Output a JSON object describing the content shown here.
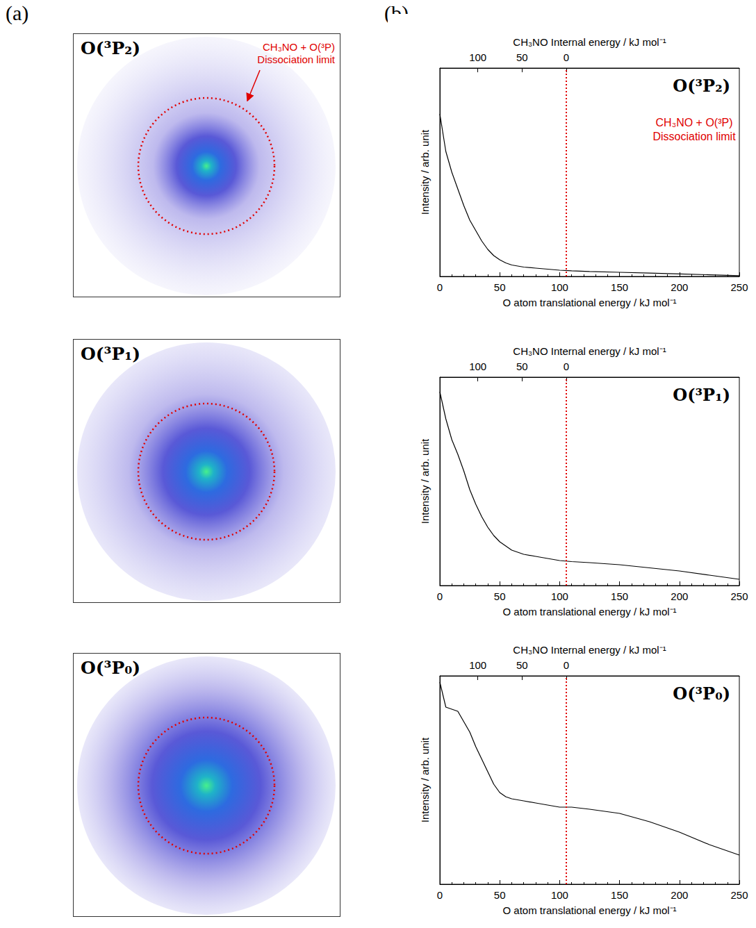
{
  "panel_labels": [
    "(a)",
    "(b)"
  ],
  "images": [
    {
      "label": "O(³P₂)",
      "circle_color": "#e00000",
      "annotation": [
        "CH₃NO + O(³P)",
        "Dissociation limit"
      ]
    },
    {
      "label": "O(³P₁)",
      "circle_color": "#e00000"
    },
    {
      "label": "O(³P₀)",
      "circle_color": "#e00000"
    }
  ],
  "chart_data": [
    {
      "type": "line",
      "title": "O(³P₂)",
      "x_label": "O atom translational energy / kJ mol⁻¹",
      "y_label": "Intensity / arb. unit",
      "x2_label": "CH₃NO Internal energy / kJ mol⁻¹",
      "x": [
        0,
        5,
        10,
        15,
        20,
        25,
        30,
        35,
        40,
        45,
        50,
        55,
        60,
        70,
        80,
        90,
        100,
        110,
        125,
        150,
        175,
        200,
        225,
        250
      ],
      "values": [
        0.78,
        0.6,
        0.5,
        0.42,
        0.34,
        0.27,
        0.22,
        0.17,
        0.13,
        0.1,
        0.08,
        0.065,
        0.055,
        0.045,
        0.04,
        0.035,
        0.03,
        0.027,
        0.024,
        0.02,
        0.016,
        0.012,
        0.008,
        0.004
      ],
      "color": "#000000",
      "xlim": [
        0,
        250
      ],
      "xticks": [
        0,
        50,
        100,
        150,
        200,
        250
      ],
      "x2lim": [
        143,
        -196
      ],
      "x2ticks": [
        0,
        50,
        100
      ],
      "ylim": [
        0,
        1
      ],
      "tick_labels": "x",
      "dissociation_limit": {
        "x": 105.5,
        "color": "#e00000",
        "line_style": "dotted",
        "label": [
          "CH₃NO + O(³P)",
          "Dissociation limit"
        ]
      }
    },
    {
      "type": "line",
      "title": "O(³P₁)",
      "x_label": "O atom translational energy / kJ mol⁻¹",
      "y_label": "Intensity / arb. unit",
      "x2_label": "CH₃NO Internal energy / kJ mol⁻¹",
      "x": [
        0,
        5,
        10,
        15,
        20,
        25,
        30,
        35,
        40,
        45,
        50,
        55,
        60,
        70,
        80,
        90,
        100,
        110,
        125,
        150,
        175,
        200,
        225,
        250
      ],
      "values": [
        0.93,
        0.8,
        0.7,
        0.63,
        0.55,
        0.46,
        0.39,
        0.33,
        0.28,
        0.24,
        0.21,
        0.19,
        0.17,
        0.15,
        0.14,
        0.13,
        0.12,
        0.115,
        0.11,
        0.1,
        0.085,
        0.07,
        0.05,
        0.03
      ],
      "color": "#000000",
      "xlim": [
        0,
        250
      ],
      "xticks": [
        0,
        50,
        100,
        150,
        200,
        250
      ],
      "x2lim": [
        143,
        -196
      ],
      "x2ticks": [
        0,
        50,
        100
      ],
      "ylim": [
        0,
        1
      ],
      "tick_labels": "x",
      "dissociation_limit": {
        "x": 105.5,
        "color": "#e00000",
        "line_style": "dotted"
      }
    },
    {
      "type": "line",
      "title": "O(³P₀)",
      "x_label": "O atom translational energy / kJ mol⁻¹",
      "y_label": "Intensity / arb. unit",
      "x2_label": "CH₃NO Internal energy / kJ mol⁻¹",
      "x": [
        0,
        5,
        10,
        15,
        20,
        25,
        30,
        35,
        40,
        45,
        50,
        55,
        60,
        70,
        80,
        90,
        100,
        110,
        125,
        150,
        175,
        200,
        225,
        250
      ],
      "values": [
        0.97,
        0.85,
        0.84,
        0.83,
        0.78,
        0.73,
        0.66,
        0.6,
        0.54,
        0.48,
        0.44,
        0.42,
        0.41,
        0.4,
        0.39,
        0.38,
        0.37,
        0.37,
        0.36,
        0.34,
        0.3,
        0.25,
        0.19,
        0.14
      ],
      "color": "#000000",
      "xlim": [
        0,
        250
      ],
      "xticks": [
        0,
        50,
        100,
        150,
        200,
        250
      ],
      "x2lim": [
        143,
        -196
      ],
      "x2ticks": [
        0,
        50,
        100
      ],
      "ylim": [
        0,
        1
      ],
      "tick_labels": "x",
      "dissociation_limit": {
        "x": 105.5,
        "color": "#e00000",
        "line_style": "dotted"
      }
    }
  ]
}
